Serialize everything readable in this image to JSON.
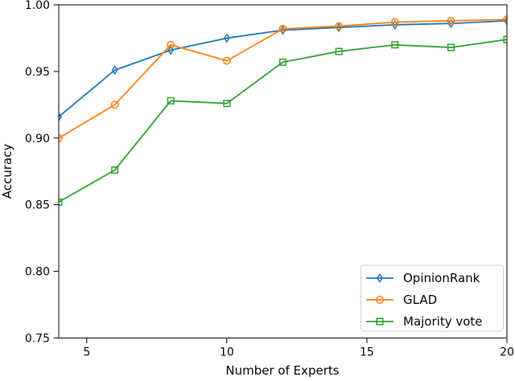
{
  "figure": {
    "background": "#ffffff"
  },
  "chart_data": {
    "type": "line",
    "title": "",
    "xlabel": "Number of Experts",
    "ylabel": "Accuracy",
    "xlim": [
      4,
      20
    ],
    "ylim": [
      0.75,
      1.0
    ],
    "grid": false,
    "legend_position": "lower right",
    "xticks": [
      5,
      10,
      15,
      20
    ],
    "xtick_labels": [
      "5",
      "10",
      "15",
      "20"
    ],
    "yticks": [
      0.75,
      0.8,
      0.85,
      0.9,
      0.95,
      1.0
    ],
    "ytick_labels": [
      "0.75",
      "0.80",
      "0.85",
      "0.90",
      "0.95",
      "1.00"
    ],
    "x": [
      4,
      6,
      8,
      10,
      12,
      14,
      16,
      18,
      20
    ],
    "series": [
      {
        "name": "OpinionRank",
        "color": "#1f77b4",
        "marker": "diamond",
        "values": [
          0.916,
          0.951,
          0.966,
          0.975,
          0.981,
          0.983,
          0.985,
          0.986,
          0.988
        ]
      },
      {
        "name": "GLAD",
        "color": "#ff7f0e",
        "marker": "circle",
        "values": [
          0.9,
          0.925,
          0.97,
          0.958,
          0.982,
          0.984,
          0.987,
          0.988,
          0.989
        ]
      },
      {
        "name": "Majority vote",
        "color": "#2ca02c",
        "marker": "square",
        "values": [
          0.852,
          0.876,
          0.928,
          0.926,
          0.957,
          0.965,
          0.97,
          0.968,
          0.974
        ]
      }
    ],
    "legend_items": [
      "OpinionRank",
      "GLAD",
      "Majority vote"
    ],
    "axis_color": "#000000",
    "legend_border_color": "#cccccc"
  }
}
